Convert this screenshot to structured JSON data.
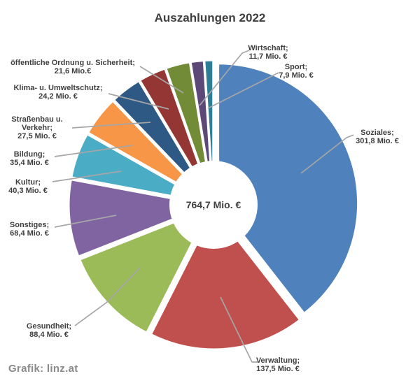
{
  "page": {
    "title": "Auszahlungen 2022",
    "credit": "Grafik: linz.at"
  },
  "chart_data": {
    "type": "pie",
    "subtype": "exploded-donut",
    "title": "Auszahlungen 2022",
    "unit": "Mio. €",
    "total": 764.7,
    "total_label": "764,7 Mio. €",
    "start_angle_deg": 0,
    "direction": "clockwise",
    "legend_position": "none",
    "colors": {
      "label_text": "#3F3F3F",
      "leader_line": "#A6A6A6",
      "background": "#FFFFFF",
      "hole": "#FFFFFF"
    },
    "slices": [
      {
        "name": "Soziales;",
        "value": 301.8,
        "value_label": "301,8 Mio. €",
        "color": "#4F81BD"
      },
      {
        "name": "Verwaltung;",
        "value": 137.5,
        "value_label": "137,5 Mio. €",
        "color": "#C0504D"
      },
      {
        "name": "Gesundheit;",
        "value": 88.4,
        "value_label": "88,4 Mio. €",
        "color": "#9BBB59"
      },
      {
        "name": "Sonstiges;",
        "value": 68.4,
        "value_label": "68,4 Mio. €",
        "color": "#8064A2"
      },
      {
        "name": "Kultur;",
        "value": 40.3,
        "value_label": "40,3 Mio. €",
        "color": "#4BACC6"
      },
      {
        "name": "Bildung;",
        "value": 35.4,
        "value_label": "35,4 Mio. €",
        "color": "#F79646"
      },
      {
        "name": "Straßenbau u. Verkehr;",
        "value": 27.5,
        "value_label": "27,5 Mio. €",
        "color": "#2E5985"
      },
      {
        "name": "Klima- u. Umweltschutz;",
        "value": 24.2,
        "value_label": "24,2 Mio. €",
        "color": "#943634"
      },
      {
        "name": "öffentliche Ordnung u. Sicherheit;",
        "value": 21.6,
        "value_label": "21,6 Mio.€",
        "color": "#718B36"
      },
      {
        "name": "Wirtschaft;",
        "value": 11.7,
        "value_label": "11,7 Mio. €",
        "color": "#5C4978"
      },
      {
        "name": "Sport;",
        "value": 7.9,
        "value_label": "7,9 Mio. €",
        "color": "#2E7F96"
      }
    ]
  }
}
